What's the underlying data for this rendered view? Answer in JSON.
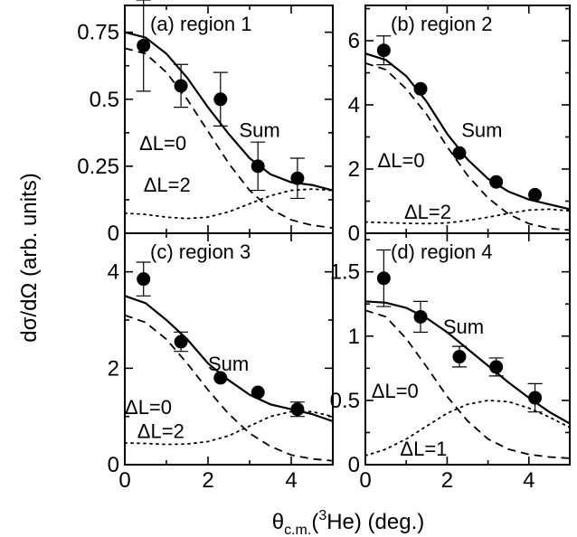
{
  "figure": {
    "ylabel": "dσ/dΩ (arb. units)",
    "xlabel": "θc.m.(3He) (deg.)"
  },
  "chart_data": [
    {
      "type": "scatter",
      "panel": "(a) region 1",
      "xlim": [
        0,
        5
      ],
      "ylim": [
        0,
        0.85
      ],
      "xticks": [
        0,
        2,
        4
      ],
      "xtick_labels": [
        "",
        "",
        ""
      ],
      "yticks": [
        0,
        0.25,
        0.5,
        0.75
      ],
      "ytick_labels": [
        "0",
        "0.25",
        "0.5",
        "0.75"
      ],
      "points": [
        {
          "x": 0.45,
          "y": 0.7,
          "err": 0.17
        },
        {
          "x": 1.35,
          "y": 0.55,
          "err": 0.08
        },
        {
          "x": 2.3,
          "y": 0.5,
          "err": 0.1
        },
        {
          "x": 3.2,
          "y": 0.25,
          "err": 0.09
        },
        {
          "x": 4.15,
          "y": 0.205,
          "err": 0.075
        }
      ],
      "series": [
        {
          "name": "Sum",
          "style": "solid",
          "x": [
            0,
            0.5,
            1,
            1.5,
            2,
            2.5,
            3,
            3.5,
            4,
            4.5,
            5
          ],
          "y": [
            0.75,
            0.73,
            0.67,
            0.58,
            0.47,
            0.37,
            0.28,
            0.22,
            0.19,
            0.18,
            0.16
          ]
        },
        {
          "name": "ΔL=0",
          "style": "dashed",
          "x": [
            0,
            0.5,
            1,
            1.5,
            2,
            2.5,
            3,
            3.5,
            4,
            4.5,
            5
          ],
          "y": [
            0.69,
            0.67,
            0.6,
            0.5,
            0.38,
            0.26,
            0.16,
            0.09,
            0.05,
            0.03,
            0.02
          ]
        },
        {
          "name": "ΔL=2",
          "style": "dotted",
          "x": [
            0,
            0.5,
            1,
            1.5,
            2,
            2.5,
            3,
            3.5,
            4,
            4.5,
            5
          ],
          "y": [
            0.075,
            0.07,
            0.06,
            0.055,
            0.06,
            0.08,
            0.11,
            0.14,
            0.16,
            0.165,
            0.16
          ]
        }
      ],
      "curve_labels": [
        {
          "text": "Sum",
          "x": 2.75,
          "y": 0.36
        },
        {
          "text": "ΔL=0",
          "x": 0.35,
          "y": 0.31
        },
        {
          "text": "ΔL=2",
          "x": 0.45,
          "y": 0.155
        }
      ]
    },
    {
      "type": "scatter",
      "panel": "(b) region 2",
      "xlim": [
        0,
        5
      ],
      "ylim": [
        0,
        7.1
      ],
      "xticks": [
        0,
        2,
        4
      ],
      "xtick_labels": [
        "",
        "",
        ""
      ],
      "yticks": [
        0,
        2,
        4,
        6
      ],
      "ytick_labels": [
        "0",
        "2",
        "4",
        "6"
      ],
      "points": [
        {
          "x": 0.45,
          "y": 5.7,
          "err": 0.45
        },
        {
          "x": 1.35,
          "y": 4.5,
          "err": 0
        },
        {
          "x": 2.3,
          "y": 2.5,
          "err": 0
        },
        {
          "x": 3.2,
          "y": 1.6,
          "err": 0
        },
        {
          "x": 4.15,
          "y": 1.2,
          "err": 0
        }
      ],
      "series": [
        {
          "name": "Sum",
          "style": "solid",
          "x": [
            0,
            0.5,
            1,
            1.5,
            2,
            2.5,
            3,
            3.5,
            4,
            4.5,
            5
          ],
          "y": [
            5.6,
            5.4,
            4.9,
            4.1,
            3.1,
            2.3,
            1.7,
            1.3,
            1.05,
            0.9,
            0.75
          ]
        },
        {
          "name": "ΔL=0",
          "style": "dashed",
          "x": [
            0,
            0.5,
            1,
            1.5,
            2,
            2.5,
            3,
            3.5,
            4,
            4.5,
            5
          ],
          "y": [
            5.3,
            5.1,
            4.5,
            3.7,
            2.7,
            1.8,
            1.1,
            0.6,
            0.3,
            0.15,
            0.1
          ]
        },
        {
          "name": "ΔL=2",
          "style": "dotted",
          "x": [
            0,
            0.5,
            1,
            1.5,
            2,
            2.5,
            3,
            3.5,
            4,
            4.5,
            5
          ],
          "y": [
            0.35,
            0.33,
            0.31,
            0.3,
            0.32,
            0.4,
            0.5,
            0.62,
            0.72,
            0.75,
            0.7
          ]
        }
      ],
      "curve_labels": [
        {
          "text": "Sum",
          "x": 2.35,
          "y": 3.0
        },
        {
          "text": "ΔL=0",
          "x": 0.3,
          "y": 2.05
        },
        {
          "text": "ΔL=2",
          "x": 0.95,
          "y": 0.45
        }
      ]
    },
    {
      "type": "scatter",
      "panel": "(c) region 3",
      "xlim": [
        0,
        5
      ],
      "ylim": [
        0,
        4.8
      ],
      "xticks": [
        0,
        2,
        4
      ],
      "xtick_labels": [
        "0",
        "2",
        "4"
      ],
      "yticks": [
        0,
        2,
        4
      ],
      "ytick_labels": [
        "0",
        "2",
        "4"
      ],
      "points": [
        {
          "x": 0.45,
          "y": 3.85,
          "err": 0.35
        },
        {
          "x": 1.35,
          "y": 2.55,
          "err": 0.2
        },
        {
          "x": 2.3,
          "y": 1.8,
          "err": 0
        },
        {
          "x": 3.2,
          "y": 1.5,
          "err": 0
        },
        {
          "x": 4.15,
          "y": 1.15,
          "err": 0.15
        }
      ],
      "series": [
        {
          "name": "Sum",
          "style": "solid",
          "x": [
            0,
            0.5,
            1,
            1.5,
            2,
            2.5,
            3,
            3.5,
            4,
            4.5,
            5
          ],
          "y": [
            3.5,
            3.35,
            3.0,
            2.6,
            2.1,
            1.75,
            1.45,
            1.25,
            1.15,
            1.05,
            0.9
          ]
        },
        {
          "name": "ΔL=0",
          "style": "dashed",
          "x": [
            0,
            0.5,
            1,
            1.5,
            2,
            2.5,
            3,
            3.5,
            4,
            4.5,
            5
          ],
          "y": [
            3.1,
            2.95,
            2.6,
            2.1,
            1.55,
            1.05,
            0.65,
            0.38,
            0.2,
            0.12,
            0.08
          ]
        },
        {
          "name": "ΔL=2",
          "style": "dotted",
          "x": [
            0,
            0.5,
            1,
            1.5,
            2,
            2.5,
            3,
            3.5,
            4,
            4.5,
            5
          ],
          "y": [
            0.45,
            0.44,
            0.42,
            0.43,
            0.48,
            0.6,
            0.8,
            1.0,
            1.1,
            1.1,
            1.0
          ]
        }
      ],
      "curve_labels": [
        {
          "text": "Sum",
          "x": 2.0,
          "y": 1.95
        },
        {
          "text": "ΔL=0",
          "x": 0.0,
          "y": 1.05
        },
        {
          "text": "ΔL=2",
          "x": 0.3,
          "y": 0.55
        }
      ]
    },
    {
      "type": "scatter",
      "panel": "(d) region 4",
      "xlim": [
        0,
        5
      ],
      "ylim": [
        0,
        1.8
      ],
      "xticks": [
        0,
        2,
        4
      ],
      "xtick_labels": [
        "0",
        "2",
        "4"
      ],
      "yticks": [
        0,
        0.5,
        1,
        1.5
      ],
      "ytick_labels": [
        "0",
        "0.5",
        "1",
        "1.5"
      ],
      "points": [
        {
          "x": 0.45,
          "y": 1.45,
          "err": 0.22
        },
        {
          "x": 1.35,
          "y": 1.15,
          "err": 0.12
        },
        {
          "x": 2.3,
          "y": 0.84,
          "err": 0.08
        },
        {
          "x": 3.2,
          "y": 0.76,
          "err": 0.07
        },
        {
          "x": 4.15,
          "y": 0.52,
          "err": 0.11
        }
      ],
      "series": [
        {
          "name": "Sum",
          "style": "solid",
          "x": [
            0,
            0.5,
            1,
            1.5,
            2,
            2.5,
            3,
            3.5,
            4,
            4.5,
            5
          ],
          "y": [
            1.27,
            1.26,
            1.22,
            1.14,
            1.03,
            0.9,
            0.77,
            0.64,
            0.52,
            0.41,
            0.32
          ]
        },
        {
          "name": "ΔL=0",
          "style": "dashed",
          "x": [
            0,
            0.5,
            1,
            1.5,
            2,
            2.5,
            3,
            3.5,
            4,
            4.5,
            5
          ],
          "y": [
            1.2,
            1.15,
            0.98,
            0.76,
            0.53,
            0.34,
            0.2,
            0.12,
            0.08,
            0.06,
            0.05
          ]
        },
        {
          "name": "ΔL=1",
          "style": "dotted",
          "x": [
            0,
            0.5,
            1,
            1.5,
            2,
            2.5,
            3,
            3.5,
            4,
            4.5,
            5
          ],
          "y": [
            0.07,
            0.12,
            0.2,
            0.3,
            0.4,
            0.47,
            0.5,
            0.49,
            0.44,
            0.37,
            0.29
          ]
        }
      ],
      "curve_labels": [
        {
          "text": "Sum",
          "x": 1.9,
          "y": 1.02
        },
        {
          "text": "ΔL=0",
          "x": 0.15,
          "y": 0.52
        },
        {
          "text": "ΔL=1",
          "x": 0.85,
          "y": 0.07
        }
      ]
    }
  ]
}
